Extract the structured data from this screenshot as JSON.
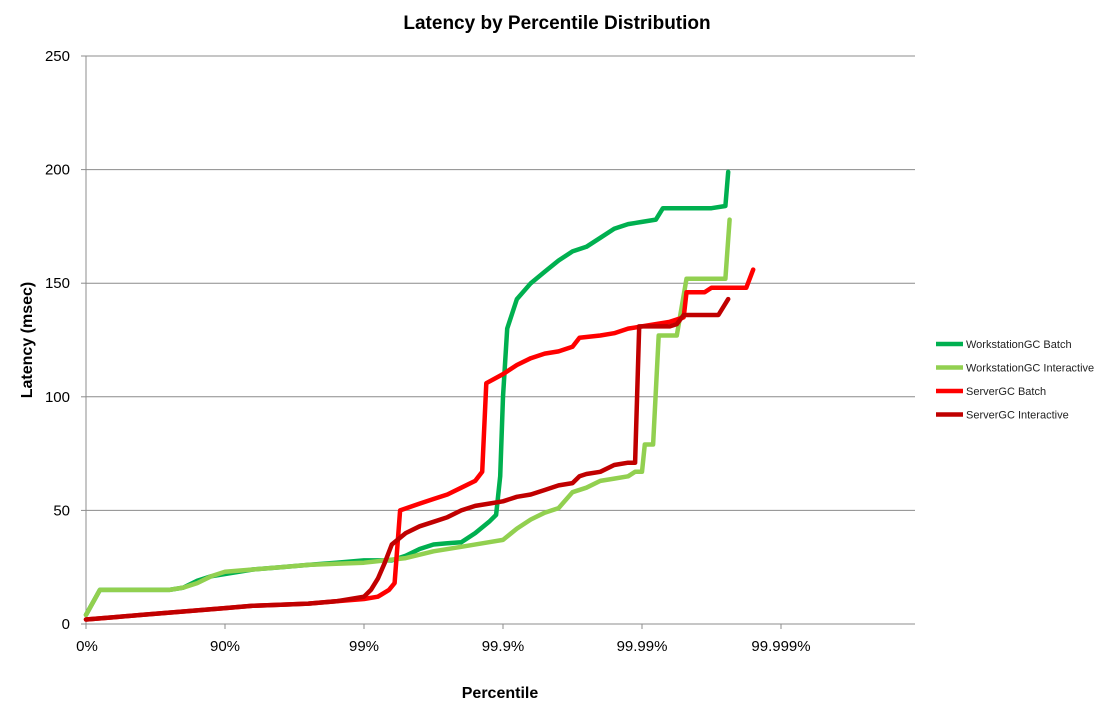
{
  "chart_data": {
    "type": "line",
    "title": "Latency by Percentile Distribution",
    "xlabel": "Percentile",
    "ylabel": "Latency  (msec)",
    "x_scale": "log-percentile (nines)",
    "x_ticks": [
      "0%",
      "90%",
      "99%",
      "99.9%",
      "99.99%",
      "99.999%"
    ],
    "y_ticks": [
      "0",
      "50",
      "100",
      "150",
      "200",
      "250"
    ],
    "ylim": [
      0,
      250
    ],
    "grid": "horizontal",
    "legend_position": "right",
    "series": [
      {
        "name": "WorkstationGC Batch",
        "color": "#00b050",
        "points": [
          [
            0.0,
            4
          ],
          [
            0.1,
            15
          ],
          [
            0.6,
            15
          ],
          [
            0.7,
            16
          ],
          [
            0.8,
            19
          ],
          [
            0.9,
            21
          ],
          [
            1.0,
            22
          ],
          [
            1.2,
            24
          ],
          [
            1.4,
            25
          ],
          [
            1.6,
            26
          ],
          [
            1.8,
            27
          ],
          [
            2.0,
            28
          ],
          [
            2.2,
            28
          ],
          [
            2.3,
            30
          ],
          [
            2.4,
            33
          ],
          [
            2.5,
            35
          ],
          [
            2.6,
            35.5
          ],
          [
            2.7,
            36
          ],
          [
            2.8,
            40
          ],
          [
            2.9,
            45
          ],
          [
            2.95,
            48
          ],
          [
            2.98,
            65
          ],
          [
            3.0,
            100
          ],
          [
            3.03,
            130
          ],
          [
            3.1,
            143
          ],
          [
            3.2,
            150
          ],
          [
            3.3,
            155
          ],
          [
            3.4,
            160
          ],
          [
            3.5,
            164
          ],
          [
            3.6,
            166
          ],
          [
            3.7,
            170
          ],
          [
            3.8,
            174
          ],
          [
            3.9,
            176
          ],
          [
            4.0,
            177
          ],
          [
            4.1,
            178
          ],
          [
            4.15,
            183
          ],
          [
            4.3,
            183
          ],
          [
            4.5,
            183
          ],
          [
            4.6,
            184
          ],
          [
            4.62,
            199
          ]
        ]
      },
      {
        "name": "WorkstationGC Interactive",
        "color": "#92d050",
        "points": [
          [
            0.0,
            4
          ],
          [
            0.1,
            15
          ],
          [
            0.6,
            15
          ],
          [
            0.7,
            16
          ],
          [
            0.8,
            18
          ],
          [
            0.9,
            21
          ],
          [
            1.0,
            23
          ],
          [
            1.2,
            24
          ],
          [
            1.4,
            25
          ],
          [
            1.6,
            26
          ],
          [
            1.8,
            26.5
          ],
          [
            2.0,
            27
          ],
          [
            2.3,
            29
          ],
          [
            2.5,
            32
          ],
          [
            2.7,
            34
          ],
          [
            2.9,
            36
          ],
          [
            3.0,
            37
          ],
          [
            3.1,
            42
          ],
          [
            3.2,
            46
          ],
          [
            3.3,
            49
          ],
          [
            3.4,
            51
          ],
          [
            3.5,
            58
          ],
          [
            3.6,
            60
          ],
          [
            3.7,
            63
          ],
          [
            3.8,
            64
          ],
          [
            3.9,
            65
          ],
          [
            3.95,
            67
          ],
          [
            4.0,
            67
          ],
          [
            4.02,
            79
          ],
          [
            4.08,
            79
          ],
          [
            4.12,
            127
          ],
          [
            4.25,
            127
          ],
          [
            4.32,
            152
          ],
          [
            4.4,
            152
          ],
          [
            4.6,
            152
          ],
          [
            4.63,
            178
          ]
        ]
      },
      {
        "name": "ServerGC Batch",
        "color": "#ff0000",
        "points": [
          [
            0.0,
            2
          ],
          [
            0.2,
            3
          ],
          [
            0.4,
            4
          ],
          [
            0.6,
            5
          ],
          [
            0.8,
            6
          ],
          [
            1.0,
            7
          ],
          [
            1.2,
            8
          ],
          [
            1.4,
            8.5
          ],
          [
            1.6,
            9
          ],
          [
            1.8,
            10
          ],
          [
            2.0,
            11
          ],
          [
            2.1,
            12
          ],
          [
            2.18,
            15
          ],
          [
            2.22,
            18
          ],
          [
            2.26,
            50
          ],
          [
            2.4,
            53
          ],
          [
            2.5,
            55
          ],
          [
            2.6,
            57
          ],
          [
            2.7,
            60
          ],
          [
            2.8,
            63
          ],
          [
            2.85,
            67
          ],
          [
            2.88,
            106
          ],
          [
            3.0,
            110
          ],
          [
            3.1,
            114
          ],
          [
            3.2,
            117
          ],
          [
            3.3,
            119
          ],
          [
            3.4,
            120
          ],
          [
            3.5,
            122
          ],
          [
            3.55,
            126
          ],
          [
            3.7,
            127
          ],
          [
            3.8,
            128
          ],
          [
            3.9,
            130
          ],
          [
            4.0,
            131
          ],
          [
            4.1,
            132
          ],
          [
            4.2,
            133
          ],
          [
            4.3,
            135
          ],
          [
            4.32,
            146
          ],
          [
            4.45,
            146
          ],
          [
            4.5,
            148
          ],
          [
            4.7,
            148
          ],
          [
            4.75,
            148
          ],
          [
            4.8,
            156
          ]
        ]
      },
      {
        "name": "ServerGC Interactive",
        "color": "#c00000",
        "points": [
          [
            0.0,
            2
          ],
          [
            0.2,
            3
          ],
          [
            0.4,
            4
          ],
          [
            0.6,
            5
          ],
          [
            0.8,
            6
          ],
          [
            1.0,
            7
          ],
          [
            1.2,
            8
          ],
          [
            1.4,
            8.5
          ],
          [
            1.6,
            9
          ],
          [
            1.8,
            10
          ],
          [
            2.0,
            12
          ],
          [
            2.05,
            15
          ],
          [
            2.1,
            20
          ],
          [
            2.15,
            27
          ],
          [
            2.2,
            35
          ],
          [
            2.3,
            40
          ],
          [
            2.4,
            43
          ],
          [
            2.5,
            45
          ],
          [
            2.6,
            47
          ],
          [
            2.7,
            50
          ],
          [
            2.8,
            52
          ],
          [
            2.9,
            53
          ],
          [
            3.0,
            54
          ],
          [
            3.1,
            56
          ],
          [
            3.2,
            57
          ],
          [
            3.3,
            59
          ],
          [
            3.4,
            61
          ],
          [
            3.5,
            62
          ],
          [
            3.55,
            65
          ],
          [
            3.6,
            66
          ],
          [
            3.7,
            67
          ],
          [
            3.8,
            70
          ],
          [
            3.9,
            71
          ],
          [
            3.95,
            71
          ],
          [
            3.98,
            131
          ],
          [
            4.1,
            131
          ],
          [
            4.2,
            131
          ],
          [
            4.25,
            132
          ],
          [
            4.3,
            136
          ],
          [
            4.5,
            136
          ],
          [
            4.55,
            136
          ],
          [
            4.62,
            143
          ]
        ]
      }
    ]
  }
}
